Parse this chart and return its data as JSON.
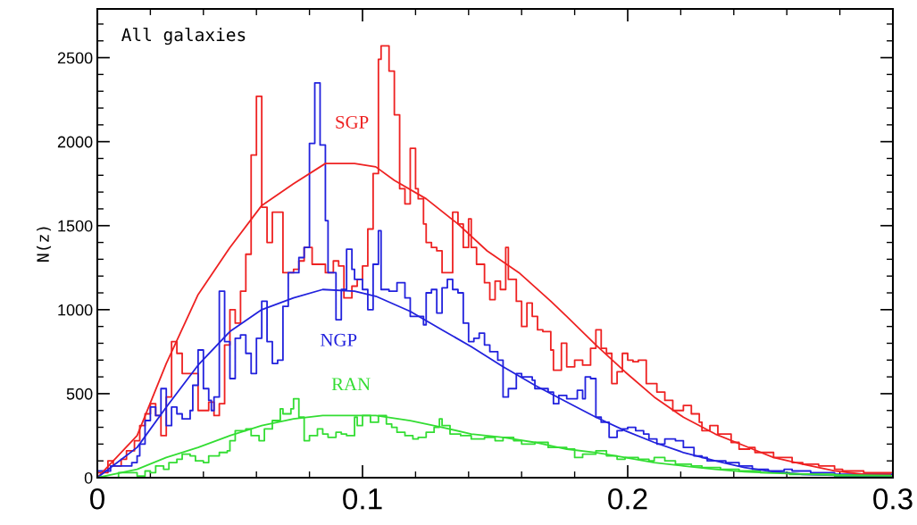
{
  "chart_data": {
    "type": "step",
    "ylabel": "N(z)",
    "xlim": [
      0,
      0.3
    ],
    "ylim": [
      0,
      2790
    ],
    "xticks": [
      0,
      0.1,
      0.2,
      0.3
    ],
    "yticks": [
      0,
      500,
      1000,
      1500,
      2000,
      2500
    ],
    "grid": false,
    "legend": false,
    "annotations": [
      "All galaxies"
    ],
    "series": [
      {
        "color": "#ee2222",
        "x": [
          0,
          0.004,
          0.006,
          0.009,
          0.011,
          0.014,
          0.016,
          0.018,
          0.02,
          0.022,
          0.024,
          0.026,
          0.028,
          0.03,
          0.032,
          0.038,
          0.042,
          0.044,
          0.046,
          0.048,
          0.05,
          0.052,
          0.054,
          0.056,
          0.058,
          0.06,
          0.062,
          0.064,
          0.066,
          0.07,
          0.074,
          0.076,
          0.078,
          0.081,
          0.086,
          0.089,
          0.091,
          0.093,
          0.096,
          0.098,
          0.1,
          0.102,
          0.104,
          0.106,
          0.107,
          0.11,
          0.112,
          0.114,
          0.116,
          0.118,
          0.12,
          0.121,
          0.123,
          0.124,
          0.126,
          0.128,
          0.13,
          0.134,
          0.136,
          0.138,
          0.14,
          0.141,
          0.143,
          0.146,
          0.148,
          0.15,
          0.152,
          0.154,
          0.155,
          0.158,
          0.16,
          0.162,
          0.164,
          0.166,
          0.168,
          0.171,
          0.172,
          0.175,
          0.177,
          0.18,
          0.183,
          0.186,
          0.188,
          0.19,
          0.192,
          0.194,
          0.196,
          0.198,
          0.2,
          0.202,
          0.204,
          0.207,
          0.211,
          0.214,
          0.217,
          0.221,
          0.224,
          0.227,
          0.228,
          0.231,
          0.234,
          0.239,
          0.242,
          0.246,
          0.248,
          0.255,
          0.262,
          0.266,
          0.272,
          0.278,
          0.281,
          0.289,
          0.294,
          0.3
        ],
        "values": [
          30,
          100,
          70,
          110,
          160,
          220,
          310,
          380,
          440,
          370,
          250,
          480,
          810,
          740,
          620,
          400,
          450,
          370,
          440,
          790,
          1000,
          920,
          1110,
          1330,
          1920,
          2270,
          1610,
          1400,
          1580,
          1220,
          1240,
          1290,
          1370,
          1270,
          1220,
          1290,
          1260,
          1070,
          1140,
          1180,
          1260,
          1480,
          1810,
          2490,
          2570,
          2420,
          2160,
          1720,
          1630,
          1960,
          1720,
          1660,
          1510,
          1400,
          1370,
          1350,
          1220,
          1580,
          1510,
          1370,
          1540,
          1370,
          1270,
          1160,
          1060,
          1170,
          1120,
          1370,
          1180,
          1050,
          900,
          1040,
          960,
          880,
          870,
          760,
          640,
          800,
          660,
          700,
          670,
          770,
          880,
          770,
          740,
          560,
          630,
          740,
          700,
          690,
          700,
          560,
          510,
          460,
          400,
          430,
          380,
          330,
          280,
          310,
          260,
          210,
          170,
          180,
          150,
          120,
          90,
          80,
          70,
          50,
          40,
          30,
          30,
          30
        ]
      },
      {
        "color": "#2222dd",
        "x": [
          0,
          0.005,
          0.013,
          0.015,
          0.016,
          0.018,
          0.02,
          0.022,
          0.024,
          0.026,
          0.028,
          0.03,
          0.032,
          0.035,
          0.036,
          0.038,
          0.04,
          0.042,
          0.043,
          0.044,
          0.046,
          0.048,
          0.05,
          0.052,
          0.054,
          0.056,
          0.058,
          0.06,
          0.062,
          0.064,
          0.066,
          0.068,
          0.07,
          0.072,
          0.076,
          0.078,
          0.08,
          0.082,
          0.084,
          0.086,
          0.087,
          0.09,
          0.092,
          0.094,
          0.096,
          0.097,
          0.1,
          0.102,
          0.104,
          0.106,
          0.107,
          0.11,
          0.113,
          0.116,
          0.118,
          0.123,
          0.124,
          0.126,
          0.128,
          0.13,
          0.132,
          0.134,
          0.136,
          0.138,
          0.14,
          0.142,
          0.144,
          0.146,
          0.148,
          0.151,
          0.153,
          0.155,
          0.158,
          0.16,
          0.164,
          0.165,
          0.17,
          0.172,
          0.174,
          0.177,
          0.181,
          0.183,
          0.184,
          0.186,
          0.188,
          0.19,
          0.193,
          0.196,
          0.198,
          0.2,
          0.203,
          0.206,
          0.208,
          0.211,
          0.214,
          0.218,
          0.221,
          0.225,
          0.228,
          0.23,
          0.237,
          0.242,
          0.247,
          0.253,
          0.259,
          0.262,
          0.269,
          0.278,
          0.289,
          0.3
        ],
        "values": [
          40,
          70,
          90,
          130,
          200,
          340,
          420,
          370,
          530,
          310,
          420,
          380,
          350,
          400,
          550,
          760,
          530,
          460,
          400,
          480,
          1110,
          810,
          590,
          830,
          850,
          740,
          620,
          830,
          1050,
          810,
          680,
          700,
          1020,
          1220,
          1310,
          1370,
          1990,
          2350,
          1980,
          1530,
          1220,
          940,
          1120,
          1360,
          1240,
          1180,
          1120,
          1000,
          1270,
          1470,
          1120,
          1110,
          1160,
          1070,
          960,
          910,
          1100,
          1120,
          980,
          1130,
          1180,
          1120,
          1100,
          920,
          810,
          830,
          860,
          790,
          750,
          700,
          480,
          530,
          620,
          600,
          580,
          530,
          510,
          440,
          490,
          470,
          520,
          470,
          600,
          590,
          360,
          330,
          240,
          280,
          290,
          300,
          280,
          260,
          230,
          200,
          230,
          220,
          180,
          130,
          120,
          100,
          90,
          70,
          50,
          40,
          50,
          40,
          30,
          20,
          20,
          20
        ]
      },
      {
        "color": "#33dd33",
        "x": [
          0,
          0.008,
          0.015,
          0.018,
          0.02,
          0.022,
          0.025,
          0.027,
          0.03,
          0.032,
          0.035,
          0.037,
          0.04,
          0.042,
          0.046,
          0.049,
          0.05,
          0.052,
          0.056,
          0.058,
          0.061,
          0.063,
          0.066,
          0.069,
          0.07,
          0.073,
          0.074,
          0.076,
          0.078,
          0.08,
          0.083,
          0.085,
          0.087,
          0.09,
          0.092,
          0.094,
          0.097,
          0.098,
          0.1,
          0.103,
          0.106,
          0.109,
          0.111,
          0.113,
          0.116,
          0.119,
          0.121,
          0.124,
          0.127,
          0.129,
          0.13,
          0.133,
          0.137,
          0.141,
          0.146,
          0.15,
          0.153,
          0.157,
          0.16,
          0.165,
          0.17,
          0.177,
          0.18,
          0.183,
          0.188,
          0.192,
          0.196,
          0.199,
          0.204,
          0.208,
          0.21,
          0.214,
          0.218,
          0.224,
          0.228,
          0.235,
          0.242,
          0.25,
          0.261,
          0.278,
          0.3
        ],
        "values": [
          0,
          30,
          10,
          40,
          30,
          70,
          50,
          90,
          110,
          140,
          130,
          100,
          90,
          130,
          150,
          160,
          220,
          280,
          290,
          250,
          220,
          290,
          340,
          410,
          380,
          410,
          470,
          360,
          220,
          250,
          290,
          260,
          240,
          270,
          260,
          250,
          360,
          310,
          370,
          330,
          370,
          320,
          300,
          270,
          250,
          230,
          240,
          270,
          300,
          350,
          310,
          260,
          250,
          230,
          240,
          220,
          240,
          220,
          200,
          210,
          180,
          170,
          120,
          140,
          160,
          130,
          110,
          120,
          110,
          100,
          120,
          100,
          80,
          70,
          60,
          50,
          40,
          30,
          20,
          10,
          10
        ]
      },
      {
        "type": "line",
        "name": "SGP",
        "color": "#ee2222",
        "x": [
          0,
          0.015,
          0.026,
          0.038,
          0.05,
          0.062,
          0.074,
          0.086,
          0.097,
          0.105,
          0.112,
          0.124,
          0.136,
          0.147,
          0.159,
          0.171,
          0.177,
          0.188,
          0.199,
          0.21,
          0.221,
          0.233,
          0.244,
          0.255,
          0.266,
          0.278,
          0.289,
          0.299
        ],
        "values": [
          0,
          250,
          680,
          1090,
          1370,
          1620,
          1750,
          1870,
          1870,
          1850,
          1770,
          1660,
          1510,
          1350,
          1220,
          1050,
          960,
          790,
          630,
          480,
          360,
          260,
          190,
          120,
          80,
          40,
          20,
          20
        ]
      },
      {
        "type": "line",
        "name": "NGP",
        "color": "#2222dd",
        "x": [
          0,
          0.015,
          0.026,
          0.038,
          0.05,
          0.062,
          0.074,
          0.085,
          0.097,
          0.105,
          0.118,
          0.13,
          0.141,
          0.153,
          0.165,
          0.177,
          0.188,
          0.199,
          0.21,
          0.221,
          0.233,
          0.244,
          0.255,
          0.266,
          0.278,
          0.299
        ],
        "values": [
          0,
          180,
          420,
          670,
          870,
          1000,
          1070,
          1120,
          1110,
          1080,
          990,
          880,
          780,
          660,
          550,
          450,
          360,
          280,
          210,
          150,
          100,
          60,
          35,
          20,
          14,
          12
        ]
      },
      {
        "type": "line",
        "name": "RAN",
        "color": "#33dd33",
        "x": [
          0,
          0.015,
          0.026,
          0.038,
          0.05,
          0.062,
          0.074,
          0.085,
          0.097,
          0.105,
          0.118,
          0.13,
          0.141,
          0.153,
          0.165,
          0.177,
          0.188,
          0.199,
          0.21,
          0.221,
          0.233,
          0.244,
          0.255,
          0.278,
          0.299
        ],
        "values": [
          0,
          50,
          120,
          180,
          250,
          310,
          350,
          370,
          370,
          370,
          340,
          300,
          260,
          240,
          210,
          170,
          150,
          120,
          90,
          70,
          50,
          35,
          27,
          16,
          12
        ]
      }
    ]
  }
}
